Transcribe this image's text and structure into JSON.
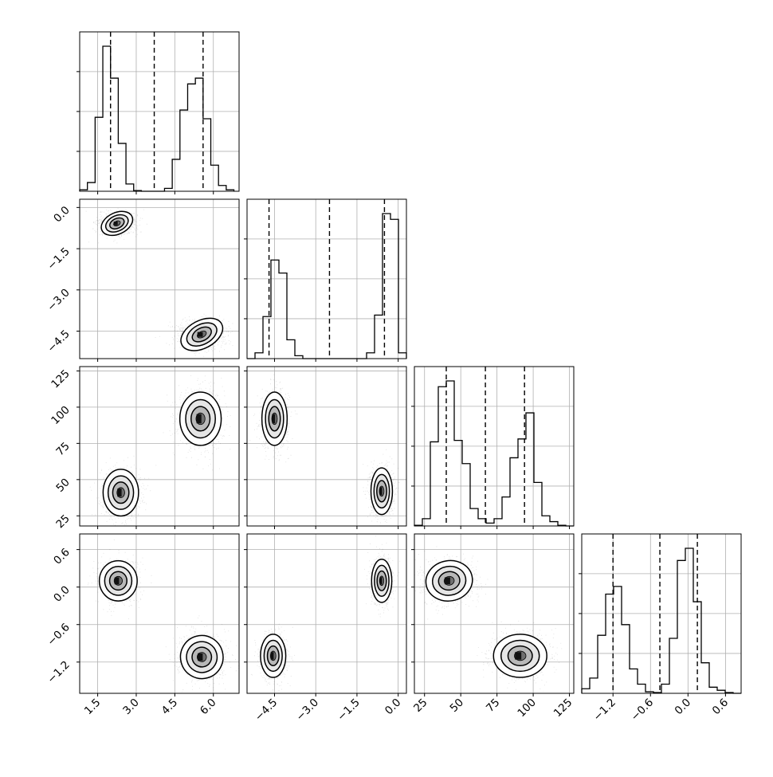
{
  "chart_data": {
    "type": "corner",
    "title": "",
    "parameters": [
      {
        "range": [
          0.8,
          7.0
        ],
        "ticks": [
          1.5,
          3.0,
          4.5,
          6.0
        ],
        "tick_labels": [
          "1.5",
          "3.0",
          "4.5",
          "6.0"
        ],
        "quantiles": [
          2.0,
          3.7,
          5.6
        ],
        "modes": [
          {
            "center": 2.3,
            "sd": 0.32
          },
          {
            "center": 5.4,
            "sd": 0.36
          }
        ]
      },
      {
        "range": [
          -5.5,
          0.3
        ],
        "ticks": [
          -4.5,
          -3.0,
          -1.5,
          0.0
        ],
        "tick_labels": [
          "−4.5",
          "−3.0",
          "−1.5",
          "0.0"
        ],
        "quantiles": [
          -4.7,
          -2.5,
          -0.5
        ],
        "modes": [
          {
            "center": -4.5,
            "sd": 0.22
          },
          {
            "center": -0.6,
            "sd": 0.17
          }
        ]
      },
      {
        "range": [
          18,
          128
        ],
        "ticks": [
          25,
          50,
          75,
          100,
          125
        ],
        "tick_labels": [
          "25",
          "50",
          "75",
          "100",
          "125"
        ],
        "quantiles": [
          40,
          67,
          94
        ],
        "modes": [
          {
            "center": 41,
            "sd": 7
          },
          {
            "center": 91,
            "sd": 8
          }
        ]
      },
      {
        "range": [
          -1.7,
          0.85
        ],
        "ticks": [
          -1.2,
          -0.6,
          0.0,
          0.6
        ],
        "tick_labels": [
          "−1.2",
          "−0.6",
          "0.0",
          "0.6"
        ],
        "quantiles": [
          -1.2,
          -0.45,
          0.15
        ],
        "modes": [
          {
            "center": 0.1,
            "sd": 0.14
          },
          {
            "center": -1.12,
            "sd": 0.15
          }
        ]
      }
    ],
    "histograms": [
      {
        "bins": [
          0.8,
          1.1,
          1.4,
          1.7,
          2.0,
          2.3,
          2.6,
          2.9,
          3.2,
          3.5,
          3.8,
          4.1,
          4.4,
          4.7,
          5.0,
          5.3,
          5.6,
          5.9,
          6.2,
          6.5,
          6.8
        ],
        "counts": [
          0.01,
          0.06,
          0.51,
          1.0,
          0.78,
          0.33,
          0.05,
          0.005,
          0,
          0,
          0,
          0.02,
          0.22,
          0.56,
          0.74,
          0.78,
          0.5,
          0.18,
          0.04,
          0.01
        ]
      },
      {
        "bins": [
          -5.5,
          -5.21,
          -4.92,
          -4.63,
          -4.34,
          -4.05,
          -3.76,
          -3.47,
          -3.18,
          -2.89,
          -2.6,
          -2.31,
          -2.02,
          -1.73,
          -1.44,
          -1.15,
          -0.86,
          -0.57,
          -0.28,
          0.01,
          0.3
        ],
        "counts": [
          0,
          0.04,
          0.29,
          0.68,
          0.59,
          0.13,
          0.02,
          0,
          0,
          0,
          0,
          0,
          0,
          0,
          0,
          0.04,
          0.3,
          1.0,
          0.96,
          0.04
        ]
      },
      {
        "bins": [
          18,
          23.5,
          29,
          34.5,
          40,
          45.5,
          51,
          56.5,
          62,
          67.5,
          73,
          78.5,
          84,
          89.5,
          95,
          100.5,
          106,
          111.5,
          117,
          122.5,
          128
        ],
        "counts": [
          0.005,
          0.05,
          0.58,
          0.96,
          1.0,
          0.59,
          0.43,
          0.12,
          0.05,
          0.02,
          0.05,
          0.2,
          0.47,
          0.6,
          0.78,
          0.3,
          0.07,
          0.03,
          0.005,
          0
        ]
      },
      {
        "bins": [
          -1.7,
          -1.5725,
          -1.445,
          -1.3175,
          -1.19,
          -1.0625,
          -0.935,
          -0.8075,
          -0.68,
          -0.5525,
          -0.425,
          -0.2975,
          -0.17,
          -0.0425,
          0.085,
          0.2125,
          0.34,
          0.4675,
          0.595,
          0.7225,
          0.85
        ],
        "counts": [
          0.03,
          0.1,
          0.38,
          0.65,
          0.7,
          0.45,
          0.16,
          0.06,
          0.01,
          0.005,
          0.06,
          0.36,
          0.87,
          0.95,
          0.6,
          0.2,
          0.04,
          0.02,
          0.005,
          0
        ]
      }
    ],
    "pairs": [
      {
        "x": 0,
        "y": 1,
        "blobs": [
          {
            "cx": 2.25,
            "cy": -0.58,
            "sx": 0.28,
            "sy": 0.17,
            "rot": -25
          },
          {
            "cx": 5.55,
            "cy": -4.62,
            "sx": 0.38,
            "sy": 0.22,
            "rot": -28
          }
        ]
      },
      {
        "x": 0,
        "y": 2,
        "blobs": [
          {
            "cx": 2.4,
            "cy": 41,
            "sx": 0.3,
            "sy": 7,
            "rot": 0
          },
          {
            "cx": 5.5,
            "cy": 92,
            "sx": 0.35,
            "sy": 8,
            "rot": 0
          }
        ]
      },
      {
        "x": 1,
        "y": 2,
        "blobs": [
          {
            "cx": -4.5,
            "cy": 92,
            "sx": 0.2,
            "sy": 8,
            "rot": 0
          },
          {
            "cx": -0.6,
            "cy": 42,
            "sx": 0.17,
            "sy": 7,
            "rot": 0
          }
        ]
      },
      {
        "x": 0,
        "y": 3,
        "blobs": [
          {
            "cx": 2.3,
            "cy": 0.1,
            "sx": 0.32,
            "sy": 0.14,
            "rot": 0
          },
          {
            "cx": 5.55,
            "cy": -1.12,
            "sx": 0.36,
            "sy": 0.15,
            "rot": -15
          }
        ]
      },
      {
        "x": 1,
        "y": 3,
        "blobs": [
          {
            "cx": -4.55,
            "cy": -1.1,
            "sx": 0.2,
            "sy": 0.15,
            "rot": 0
          },
          {
            "cx": -0.6,
            "cy": 0.1,
            "sx": 0.16,
            "sy": 0.15,
            "rot": 0
          }
        ]
      },
      {
        "x": 2,
        "y": 3,
        "blobs": [
          {
            "cx": 42,
            "cy": 0.1,
            "sx": 7,
            "sy": 0.14,
            "rot": -10
          },
          {
            "cx": 91,
            "cy": -1.1,
            "sx": 8,
            "sy": 0.15,
            "rot": 0
          }
        ]
      }
    ]
  }
}
